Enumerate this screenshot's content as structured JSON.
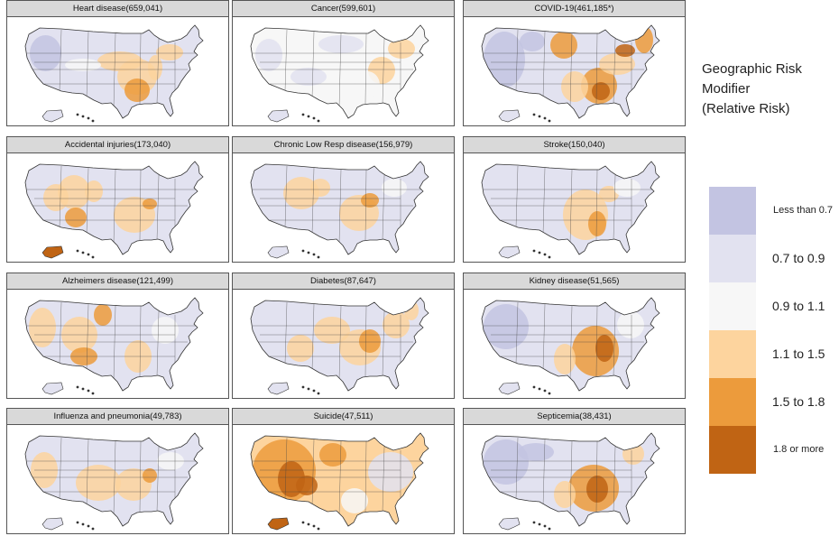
{
  "panels": [
    {
      "title": "Heart disease(659,041)",
      "pattern": "heart"
    },
    {
      "title": "Cancer(599,601)",
      "pattern": "cancer"
    },
    {
      "title": "COVID-19(461,185*)",
      "pattern": "covid"
    },
    {
      "title": "Accidental injuries(173,040)",
      "pattern": "accident"
    },
    {
      "title": "Chronic Low Resp disease(156,979)",
      "pattern": "resp"
    },
    {
      "title": "Stroke(150,040)",
      "pattern": "stroke"
    },
    {
      "title": "Alzheimers disease(121,499)",
      "pattern": "alz"
    },
    {
      "title": "Diabetes(87,647)",
      "pattern": "diabetes"
    },
    {
      "title": "Kidney disease(51,565)",
      "pattern": "kidney"
    },
    {
      "title": "Influenza and pneumonia(49,783)",
      "pattern": "flu"
    },
    {
      "title": "Suicide(47,511)",
      "pattern": "suicide"
    },
    {
      "title": "Septicemia(38,431)",
      "pattern": "septicemia"
    }
  ],
  "legend": {
    "title_lines": [
      "Geographic Risk",
      "Modifier",
      "(Relative Risk)"
    ],
    "items": [
      {
        "label": "Less than 0.7",
        "color": "#c3c4e2"
      },
      {
        "label": "0.7 to 0.9",
        "color": "#e2e2f0"
      },
      {
        "label": "0.9 to 1.1",
        "color": "#f7f7f7"
      },
      {
        "label": "1.1 to 1.5",
        "color": "#fdd49e"
      },
      {
        "label": "1.5 to 1.8",
        "color": "#ec9b3c"
      },
      {
        "label": "1.8 or more",
        "color": "#c06414"
      }
    ]
  }
}
